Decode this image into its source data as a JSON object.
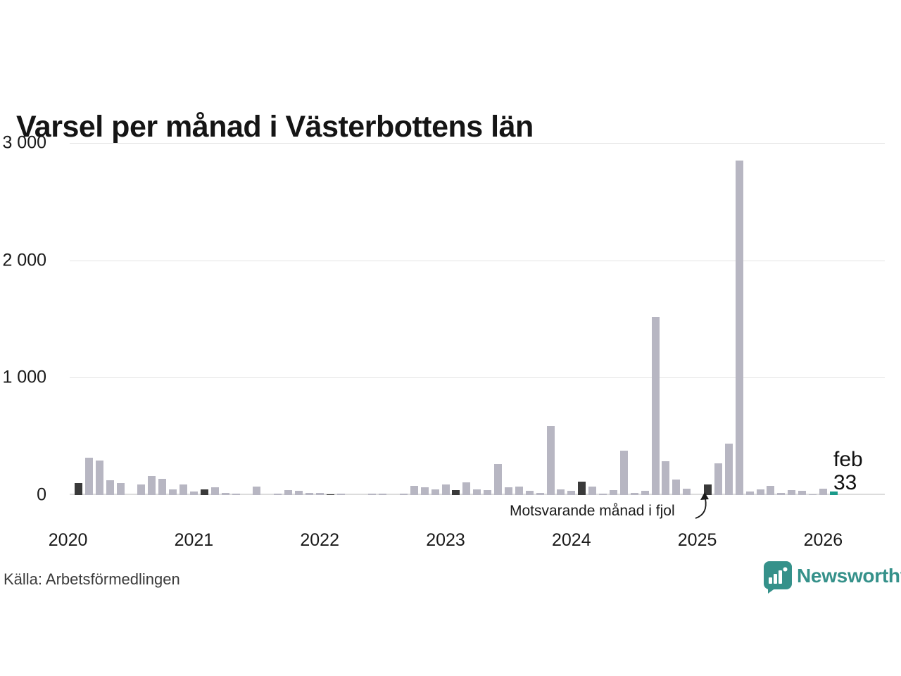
{
  "title": "Varsel per månad i Västerbottens län",
  "source": "Källa: Arbetsförmedlingen",
  "brand": {
    "name": "Newsworthy",
    "color": "#35918a"
  },
  "annotation": {
    "text": "Motsvarande månad i fjol"
  },
  "current_label": {
    "month": "feb",
    "value": "33"
  },
  "colors": {
    "bar": "#b7b6c2",
    "reference_month": "#3a3a3a",
    "current_month": "#1a9a8a",
    "gridline": "#e4e4e4",
    "axisline": "#dcdcdc",
    "text": "#1a1a1a"
  },
  "chart_data": {
    "type": "bar",
    "title": "Varsel per månad i Västerbottens län",
    "ylabel": "",
    "xlabel": "",
    "ymax": 3000,
    "y_ticks": [
      "3 000",
      "2 000",
      "1 000",
      "0"
    ],
    "year_labels": [
      "2020",
      "2021",
      "2022",
      "2023",
      "2024",
      "2025",
      "2026"
    ],
    "legend": {
      "reference_month_meaning": "Motsvarande månad i fjol",
      "current_month_meaning": "feb 33"
    },
    "x": [
      "2020-02",
      "2020-03",
      "2020-04",
      "2020-05",
      "2020-06",
      "2020-07",
      "2020-08",
      "2020-09",
      "2020-10",
      "2020-11",
      "2020-12",
      "2021-01",
      "2021-02",
      "2021-03",
      "2021-04",
      "2021-05",
      "2021-06",
      "2021-07",
      "2021-08",
      "2021-09",
      "2021-10",
      "2021-11",
      "2021-12",
      "2022-01",
      "2022-02",
      "2022-03",
      "2022-04",
      "2022-05",
      "2022-06",
      "2022-07",
      "2022-08",
      "2022-09",
      "2022-10",
      "2022-11",
      "2022-12",
      "2023-01",
      "2023-02",
      "2023-03",
      "2023-04",
      "2023-05",
      "2023-06",
      "2023-07",
      "2023-08",
      "2023-09",
      "2023-10",
      "2023-11",
      "2023-12",
      "2024-01",
      "2024-02",
      "2024-03",
      "2024-04",
      "2024-05",
      "2024-06",
      "2024-07",
      "2024-08",
      "2024-09",
      "2024-10",
      "2024-11",
      "2024-12",
      "2025-01",
      "2025-02",
      "2025-03",
      "2025-04",
      "2025-05",
      "2025-06",
      "2025-07",
      "2025-08",
      "2025-09",
      "2025-10",
      "2025-11",
      "2025-12",
      "2026-01",
      "2026-02"
    ],
    "values": [
      100,
      320,
      295,
      125,
      100,
      0,
      90,
      165,
      140,
      50,
      90,
      30,
      50,
      65,
      20,
      10,
      0,
      75,
      0,
      10,
      40,
      35,
      20,
      20,
      5,
      15,
      0,
      0,
      15,
      15,
      0,
      10,
      80,
      65,
      50,
      90,
      45,
      110,
      50,
      40,
      265,
      65,
      70,
      35,
      20,
      590,
      50,
      35,
      115,
      70,
      10,
      45,
      380,
      20,
      35,
      1520,
      290,
      135,
      55,
      0,
      90,
      270,
      440,
      2850,
      30,
      50,
      80,
      20,
      40,
      35,
      5,
      55,
      33
    ],
    "kinds": [
      "ref",
      "normal",
      "normal",
      "normal",
      "normal",
      "normal",
      "normal",
      "normal",
      "normal",
      "normal",
      "normal",
      "normal",
      "ref",
      "normal",
      "normal",
      "normal",
      "normal",
      "normal",
      "normal",
      "normal",
      "normal",
      "normal",
      "normal",
      "normal",
      "ref",
      "normal",
      "normal",
      "normal",
      "normal",
      "normal",
      "normal",
      "normal",
      "normal",
      "normal",
      "normal",
      "normal",
      "ref",
      "normal",
      "normal",
      "normal",
      "normal",
      "normal",
      "normal",
      "normal",
      "normal",
      "normal",
      "normal",
      "normal",
      "ref",
      "normal",
      "normal",
      "normal",
      "normal",
      "normal",
      "normal",
      "normal",
      "normal",
      "normal",
      "normal",
      "normal",
      "ref",
      "normal",
      "normal",
      "normal",
      "normal",
      "normal",
      "normal",
      "normal",
      "normal",
      "normal",
      "normal",
      "normal",
      "current"
    ]
  }
}
